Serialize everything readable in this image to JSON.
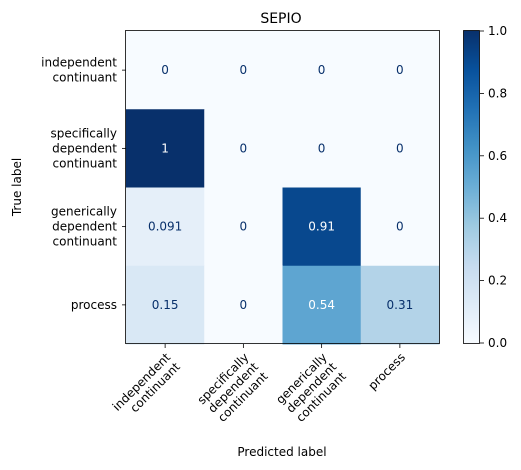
{
  "chart_data": {
    "type": "heatmap",
    "title": "SEPIO",
    "xlabel": "Predicted label",
    "ylabel": "True label",
    "row_labels": [
      [
        "independent",
        "continuant"
      ],
      [
        "specifically",
        "dependent",
        "continuant"
      ],
      [
        "generically",
        "dependent",
        "continuant"
      ],
      [
        "process"
      ]
    ],
    "col_labels": [
      [
        "independent",
        "continuant"
      ],
      [
        "specifically",
        "dependent",
        "continuant"
      ],
      [
        "generically",
        "dependent",
        "continuant"
      ],
      [
        "process"
      ]
    ],
    "values": [
      [
        0,
        0,
        0,
        0
      ],
      [
        1,
        0,
        0,
        0
      ],
      [
        0.091,
        0,
        0.91,
        0
      ],
      [
        0.15,
        0,
        0.54,
        0.31
      ]
    ],
    "cell_labels": [
      [
        "0",
        "0",
        "0",
        "0"
      ],
      [
        "1",
        "0",
        "0",
        "0"
      ],
      [
        "0.091",
        "0",
        "0.91",
        "0"
      ],
      [
        "0.15",
        "0",
        "0.54",
        "0.31"
      ]
    ],
    "colormap": "Blues",
    "vmin": 0,
    "vmax": 1,
    "colorbar_ticks": [
      "0.0",
      "0.2",
      "0.4",
      "0.6",
      "0.8",
      "1.0"
    ],
    "colorbar_tick_values": [
      0,
      0.2,
      0.4,
      0.6,
      0.8,
      1.0
    ]
  }
}
